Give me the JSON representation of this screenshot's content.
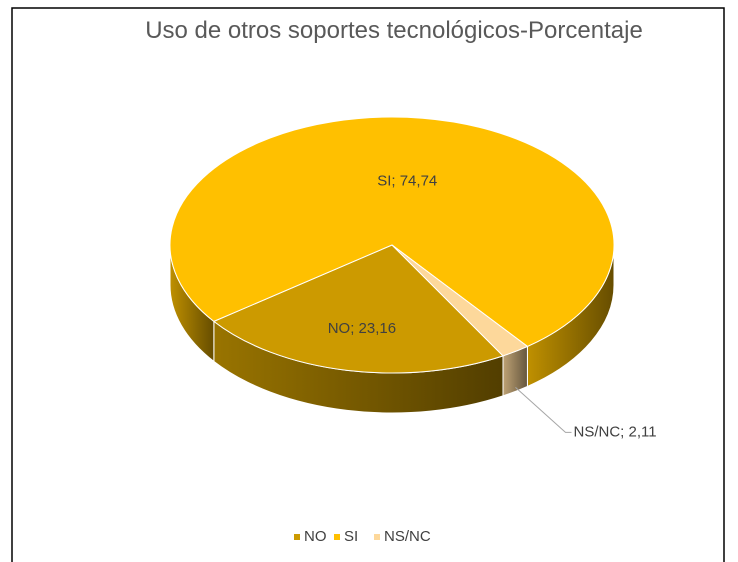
{
  "chart_data": {
    "type": "pie3d",
    "title": "Uso de otros soportes tecnológicos-Porcentaje",
    "categories": [
      "NO",
      "SI",
      "NS/NC"
    ],
    "values": [
      23.16,
      74.74,
      2.11
    ],
    "value_labels": [
      "NO; 23,16",
      "SI; 74,74",
      "NS/NC; 2,11"
    ],
    "colors": [
      "#cc9a00",
      "#ffc000",
      "#fdd89b"
    ],
    "legend": "bottom"
  }
}
